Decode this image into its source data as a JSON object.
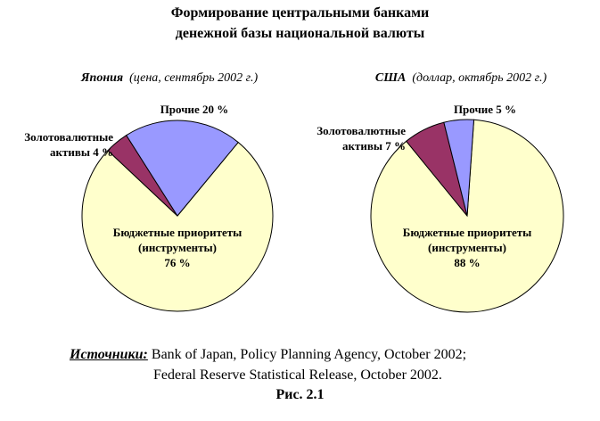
{
  "title": [
    "Формирование центральными банками",
    "денежной базы национальной валюты"
  ],
  "chart_data": [
    {
      "type": "pie",
      "title": "Япония",
      "subtitle": "(цена, сентябрь 2002 г.)",
      "categories": [
        "Бюджетные приоритеты (инструменты)",
        "Золотовалютные активы",
        "Прочие"
      ],
      "values": [
        76,
        4,
        20
      ],
      "value_labels": [
        "76 %",
        "4 %",
        "20 %"
      ],
      "colors": [
        "#ffffcc",
        "#993366",
        "#9999ff"
      ]
    },
    {
      "type": "pie",
      "title": "США",
      "subtitle": "(доллар, октябрь 2002 г.)",
      "categories": [
        "Бюджетные приоритеты (инструменты)",
        "Золотовалютные активы",
        "Прочие"
      ],
      "values": [
        88,
        7,
        5
      ],
      "value_labels": [
        "88 %",
        "7 %",
        "5 %"
      ],
      "colors": [
        "#ffffcc",
        "#993366",
        "#9999ff"
      ]
    }
  ],
  "source": {
    "label": "Источники:",
    "line1": "Bank of Japan, Policy Planning Agency, October 2002;",
    "line2": "Federal Reserve Statistical Release, October 2002."
  },
  "figure": "Рис. 2.1"
}
